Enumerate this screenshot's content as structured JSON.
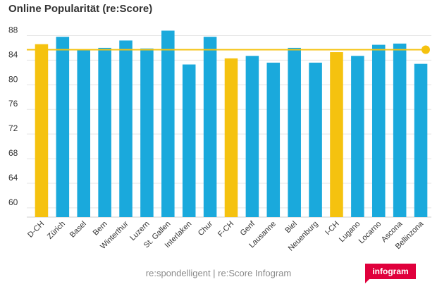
{
  "chart_data": {
    "type": "bar",
    "title": "Online Popularität (re:Score)",
    "categories": [
      "D-CH",
      "Zürich",
      "Basel",
      "Bern",
      "Winterthur",
      "Luzern",
      "St. Gallen",
      "Interlaken",
      "Chur",
      "F-CH",
      "Genf",
      "Lausanne",
      "Biel",
      "Neuenburg",
      "I-CH",
      "Lugano",
      "Locarno",
      "Ascona",
      "Bellinzona"
    ],
    "values": [
      86.6,
      87.8,
      85.6,
      86.0,
      87.2,
      85.9,
      88.8,
      83.3,
      87.8,
      84.3,
      84.7,
      83.6,
      86.0,
      83.6,
      85.3,
      84.7,
      86.5,
      86.7,
      83.4
    ],
    "highlighted": [
      "D-CH",
      "F-CH",
      "I-CH"
    ],
    "reference_line": 85.7,
    "ylim": [
      58.5,
      90
    ],
    "yticks": [
      60,
      64,
      68,
      72,
      76,
      80,
      84,
      88
    ],
    "xlabel": "",
    "ylabel": "",
    "grid": true,
    "colors": {
      "bar": "#1aa9dc",
      "highlight": "#f5c20f",
      "line": "#f5c20f",
      "grid": "#e5e5e5"
    }
  },
  "footer": {
    "source": "re:spondelligent | re:Score Infogram",
    "brand": "infogram"
  }
}
